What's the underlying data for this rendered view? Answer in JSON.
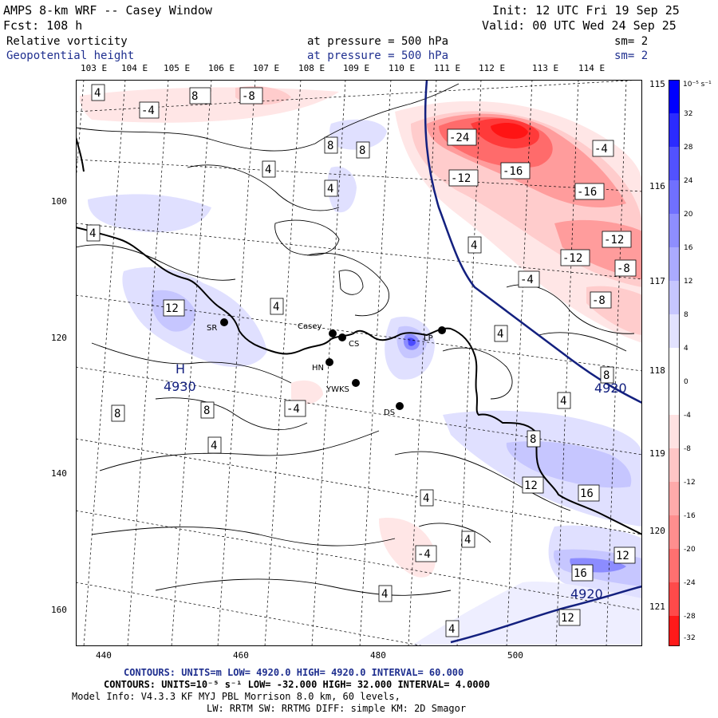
{
  "header": {
    "model_title": "AMPS 8-km WRF -- Casey Window",
    "forecast": "Fcst:  108 h",
    "init": "Init: 12 UTC Fri 19 Sep 25",
    "valid": "Valid: 00 UTC Wed 24 Sep 25",
    "field1_name": "Relative vorticity",
    "field1_level": "at pressure =  500 hPa",
    "field1_sm": "sm= 2",
    "field2_name": "Geopotential height",
    "field2_level": "at pressure =  500 hPa",
    "field2_sm": "sm= 2"
  },
  "colors": {
    "height_contour": "#13207f",
    "coast": "#000000",
    "negative_max": "#ff0000",
    "positive_max": "#0000ff"
  },
  "axes": {
    "top_lon_labels": [
      "103 E",
      "104 E",
      "105 E",
      "106 E",
      "107 E",
      "108 E",
      "109 E",
      "110 E",
      "111 E",
      "112 E",
      "113 E",
      "114 E"
    ],
    "right_lon_labels": [
      "115 E",
      "116 E",
      "117 E",
      "118 E",
      "119 E",
      "120 E",
      "121 E"
    ],
    "bottom_ticks": [
      "440",
      "460",
      "480",
      "500"
    ],
    "left_ticks": [
      "100",
      "120",
      "140",
      "160"
    ]
  },
  "colorbar": {
    "units": "10⁻⁵ s⁻¹",
    "labels": [
      "32",
      "28",
      "24",
      "20",
      "16",
      "12",
      "8",
      "4",
      "0",
      "-4",
      "-8",
      "-12",
      "-16",
      "-20",
      "-24",
      "-28",
      "-32"
    ]
  },
  "stations": [
    {
      "name": "SR"
    },
    {
      "name": "Casey"
    },
    {
      "name": "CS"
    },
    {
      "name": "HN"
    },
    {
      "name": "YWKS"
    },
    {
      "name": "LP"
    },
    {
      "name": "DS"
    }
  ],
  "map_labels": {
    "high_marker": "H",
    "high_value": "4930",
    "height_value": "4920",
    "contour_labels": [
      "4",
      "-4",
      "-8",
      "8",
      "-24",
      "-16",
      "-4",
      "-12",
      "4",
      "8",
      "-16",
      "-12",
      "-12",
      "-8",
      "4",
      "12",
      "-4",
      "-8",
      "4",
      "4",
      "8",
      "4",
      "8",
      "-4",
      "8",
      "8",
      "4",
      "8",
      "12",
      "16",
      "4",
      "4",
      "-4",
      "12",
      "16",
      "4",
      "4",
      "12",
      "4",
      "4"
    ]
  },
  "footer": {
    "line1": "CONTOURS:  UNITS=m  LOW=  4920.0        HIGH=  4920.0       INTERVAL=  60.000",
    "line2": "CONTOURS:  UNITS=10⁻⁵ s⁻¹  LOW= -32.000      HIGH=  32.000     INTERVAL=  4.0000",
    "line3": "Model Info: V4.3.3   KF     MYJ PBL  Morrison          8.0 km,  60 levels,",
    "line4": "LW: RRTM SW: RRTMG   DIFF: simple KM: 2D Smagor"
  }
}
